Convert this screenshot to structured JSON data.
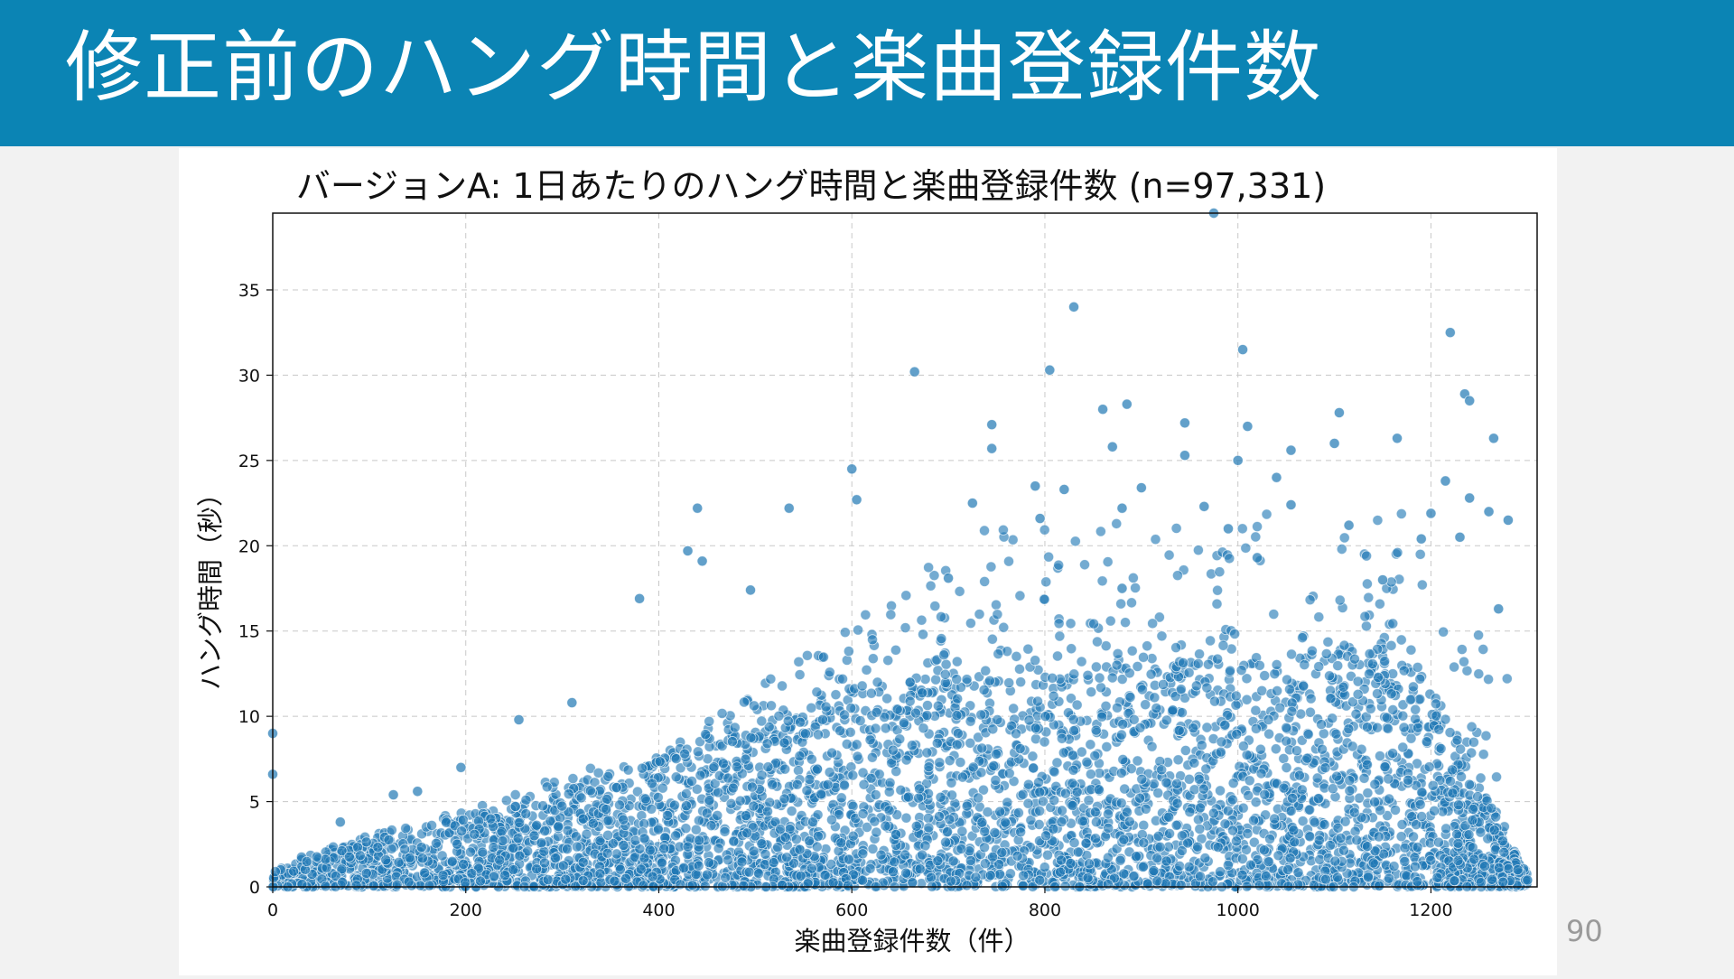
{
  "slide": {
    "title": "修正前のハング時間と楽曲登録件数",
    "page_number": "90"
  },
  "colors": {
    "header_bg": "#0b84b4",
    "point": "#1f77b4"
  },
  "chart_data": {
    "type": "scatter",
    "title": "バージョンA: 1日あたりのハング時間と楽曲登録件数 (n=97,331)",
    "xlabel": "楽曲登録件数（件）",
    "ylabel": "ハング時間（秒）",
    "xlim": [
      0,
      1310
    ],
    "ylim": [
      0,
      39.5
    ],
    "xticks": [
      0,
      200,
      400,
      600,
      800,
      1000,
      1200
    ],
    "yticks": [
      0,
      5,
      10,
      15,
      20,
      25,
      30,
      35
    ],
    "grid": true,
    "n": 97331,
    "outliers": [
      [
        975,
        39.5
      ],
      [
        830,
        34.0
      ],
      [
        1220,
        32.5
      ],
      [
        1005,
        31.5
      ],
      [
        805,
        30.3
      ],
      [
        665,
        30.2
      ],
      [
        1235,
        28.9
      ],
      [
        1240,
        28.5
      ],
      [
        885,
        28.3
      ],
      [
        860,
        28.0
      ],
      [
        1105,
        27.8
      ],
      [
        745,
        27.1
      ],
      [
        945,
        27.2
      ],
      [
        1010,
        27.0
      ],
      [
        1265,
        26.3
      ],
      [
        1165,
        26.3
      ],
      [
        1100,
        26.0
      ],
      [
        870,
        25.8
      ],
      [
        745,
        25.7
      ],
      [
        1055,
        25.6
      ],
      [
        945,
        25.3
      ],
      [
        1000,
        25.0
      ],
      [
        600,
        24.5
      ],
      [
        1040,
        24.0
      ],
      [
        1215,
        23.8
      ],
      [
        790,
        23.5
      ],
      [
        900,
        23.4
      ],
      [
        820,
        23.3
      ],
      [
        1240,
        22.8
      ],
      [
        605,
        22.7
      ],
      [
        725,
        22.5
      ],
      [
        1055,
        22.4
      ],
      [
        965,
        22.3
      ],
      [
        880,
        22.2
      ],
      [
        535,
        22.2
      ],
      [
        440,
        22.2
      ],
      [
        1260,
        22.0
      ],
      [
        1200,
        21.9
      ],
      [
        795,
        21.6
      ],
      [
        1280,
        21.5
      ],
      [
        990,
        21.0
      ],
      [
        1115,
        21.2
      ],
      [
        430,
        19.7
      ],
      [
        445,
        19.1
      ],
      [
        1230,
        20.5
      ],
      [
        1190,
        20.4
      ],
      [
        380,
        16.9
      ],
      [
        495,
        17.4
      ],
      [
        880,
        17.5
      ],
      [
        1150,
        18.0
      ],
      [
        1020,
        19.3
      ],
      [
        700,
        18.1
      ],
      [
        1270,
        16.3
      ],
      [
        310,
        10.8
      ],
      [
        255,
        9.8
      ],
      [
        195,
        7.0
      ],
      [
        150,
        5.6
      ],
      [
        125,
        5.4
      ],
      [
        70,
        3.8
      ],
      [
        0,
        9.0
      ],
      [
        0,
        6.6
      ],
      [
        1290,
        1.0
      ],
      [
        1300,
        0.4
      ]
    ]
  }
}
